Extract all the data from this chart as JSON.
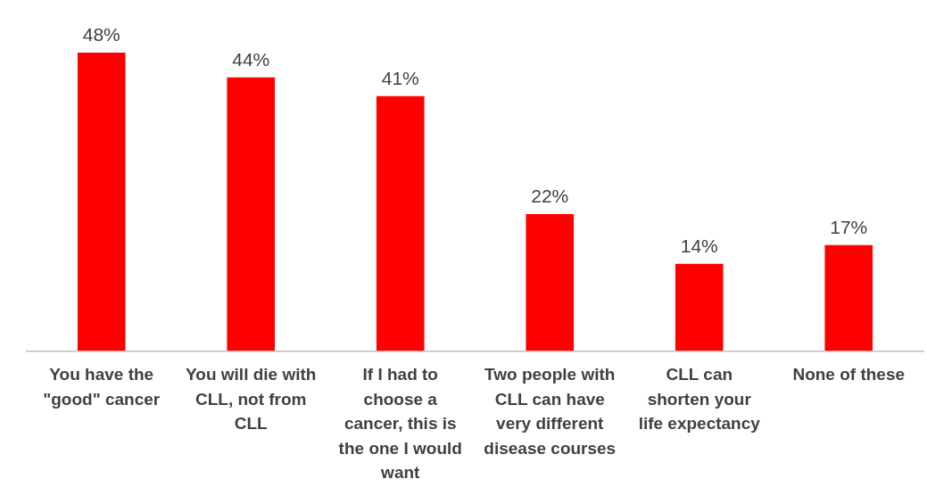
{
  "chart_data": {
    "type": "bar",
    "categories": [
      "You have the \"good\" cancer",
      "You will die with CLL, not from CLL",
      "If I had to choose a cancer, this is the one I would want",
      "Two people with CLL can have very different disease courses",
      "CLL can shorten your life expectancy",
      "None of these"
    ],
    "values": [
      48,
      44,
      41,
      22,
      14,
      17
    ],
    "value_labels": [
      "48%",
      "44%",
      "41%",
      "22%",
      "14%",
      "17%"
    ],
    "color": "#ff0000",
    "grid": false,
    "legend": false
  }
}
